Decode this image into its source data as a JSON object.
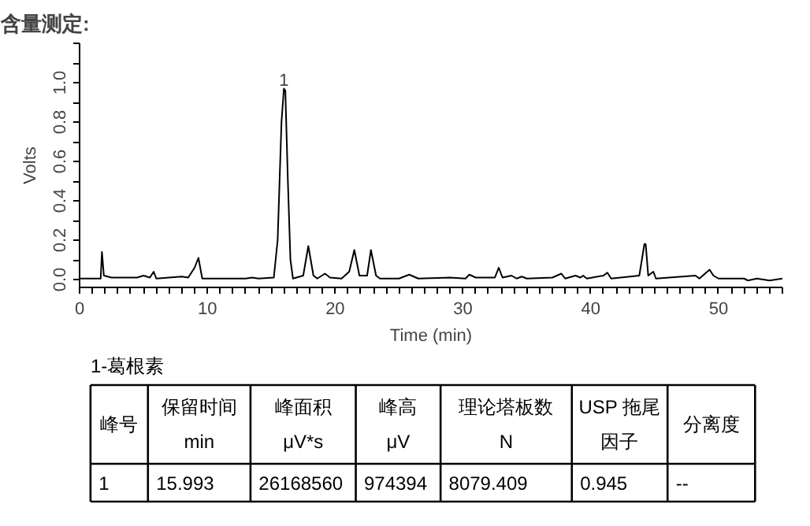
{
  "chart_data": {
    "type": "line",
    "title": "含量测定:",
    "xlabel": "Time (min)",
    "ylabel": "Volts",
    "xlim": [
      0,
      55
    ],
    "ylim": [
      -0.04,
      1.2
    ],
    "xticks": [
      0,
      {
        "value": 1,
        "label": null
      },
      {
        "value": 2,
        "label": null
      },
      {
        "value": 3,
        "label": null
      },
      {
        "value": 4,
        "label": null
      },
      {
        "value": 5,
        "label": null
      },
      {
        "value": 6,
        "label": null
      },
      {
        "value": 7,
        "label": null
      },
      {
        "value": 8,
        "label": null
      },
      {
        "value": 9,
        "label": null
      },
      10,
      {
        "value": 11,
        "label": null
      },
      {
        "value": 12,
        "label": null
      },
      {
        "value": 13,
        "label": null
      },
      {
        "value": 14,
        "label": null
      },
      {
        "value": 15,
        "label": null
      },
      {
        "value": 16,
        "label": null
      },
      {
        "value": 17,
        "label": null
      },
      {
        "value": 18,
        "label": null
      },
      {
        "value": 19,
        "label": null
      },
      20,
      {
        "value": 21,
        "label": null
      },
      {
        "value": 22,
        "label": null
      },
      {
        "value": 23,
        "label": null
      },
      {
        "value": 24,
        "label": null
      },
      {
        "value": 25,
        "label": null
      },
      {
        "value": 26,
        "label": null
      },
      {
        "value": 27,
        "label": null
      },
      {
        "value": 28,
        "label": null
      },
      {
        "value": 29,
        "label": null
      },
      30,
      {
        "value": 31,
        "label": null
      },
      {
        "value": 32,
        "label": null
      },
      {
        "value": 33,
        "label": null
      },
      {
        "value": 34,
        "label": null
      },
      {
        "value": 35,
        "label": null
      },
      {
        "value": 36,
        "label": null
      },
      {
        "value": 37,
        "label": null
      },
      {
        "value": 38,
        "label": null
      },
      {
        "value": 39,
        "label": null
      },
      40,
      {
        "value": 41,
        "label": null
      },
      {
        "value": 42,
        "label": null
      },
      {
        "value": 43,
        "label": null
      },
      {
        "value": 44,
        "label": null
      },
      {
        "value": 45,
        "label": null
      },
      {
        "value": 46,
        "label": null
      },
      {
        "value": 47,
        "label": null
      },
      {
        "value": 48,
        "label": null
      },
      {
        "value": 49,
        "label": null
      },
      50,
      {
        "value": 51,
        "label": null
      },
      {
        "value": 52,
        "label": null
      },
      {
        "value": 53,
        "label": null
      },
      {
        "value": 54,
        "label": null
      },
      {
        "value": 55,
        "label": null
      }
    ],
    "yticks": [
      {
        "value": 0,
        "label": "0.0"
      },
      {
        "value": 0.1,
        "label": null
      },
      {
        "value": 0.2,
        "label": "0.2"
      },
      {
        "value": 0.3,
        "label": null
      },
      {
        "value": 0.4,
        "label": "0.4"
      },
      {
        "value": 0.5,
        "label": null
      },
      {
        "value": 0.6,
        "label": "0.6"
      },
      {
        "value": 0.7,
        "label": null
      },
      {
        "value": 0.8,
        "label": "0.8"
      },
      {
        "value": 0.9,
        "label": null
      },
      {
        "value": 1.0,
        "label": "1.0"
      },
      {
        "value": 1.1,
        "label": null
      },
      {
        "value": 1.2,
        "label": null
      }
    ],
    "grid": false,
    "marker": "none",
    "line_style": "solid",
    "series": [
      {
        "color": "#000000",
        "x": [
          0,
          1.65,
          1.75,
          1.9,
          2.5,
          4.5,
          5,
          5.5,
          5.8,
          6,
          7,
          8,
          8.5,
          9,
          9.3,
          9.6,
          13,
          13.5,
          14,
          15.2,
          15.5,
          15.8,
          15.99,
          16.1,
          16.3,
          16.5,
          16.7,
          17.5,
          17.9,
          18.3,
          18.6,
          19.2,
          19.6,
          20.5,
          21.1,
          21.5,
          21.9,
          22.5,
          22.8,
          23.2,
          23.5,
          25,
          25.8,
          26.5,
          29,
          30.2,
          30.5,
          31,
          32.5,
          32.8,
          33.1,
          33.8,
          34.2,
          34.6,
          35,
          37,
          37.7,
          38,
          38.8,
          39.2,
          39.4,
          39.7,
          41,
          41.3,
          41.6,
          43.8,
          44.2,
          44.3,
          44.5,
          44.9,
          45.1,
          48.2,
          48.5,
          49.3,
          49.6,
          50,
          52,
          52.3,
          53,
          54,
          55
        ],
        "values": [
          0.005,
          0.005,
          0.14,
          0.02,
          0.01,
          0.01,
          0.02,
          0.01,
          0.04,
          0.005,
          0.01,
          0.015,
          0.01,
          0.06,
          0.11,
          0.005,
          0.005,
          0.01,
          0.005,
          0.01,
          0.2,
          0.8,
          0.97,
          0.96,
          0.5,
          0.1,
          0.005,
          0.02,
          0.17,
          0.02,
          0.005,
          0.03,
          0.01,
          0.005,
          0.04,
          0.15,
          0.02,
          0.02,
          0.15,
          0.02,
          0.005,
          0.005,
          0.025,
          0.005,
          0.01,
          0.005,
          0.025,
          0.01,
          0.01,
          0.06,
          0.01,
          0.02,
          0.005,
          0.015,
          0.005,
          0.01,
          0.03,
          0.005,
          0.02,
          0.01,
          0.02,
          0.005,
          0.02,
          0.035,
          0.005,
          0.02,
          0.18,
          0.18,
          0.02,
          0.04,
          0.005,
          0.02,
          0.005,
          0.05,
          0.02,
          0.005,
          0.005,
          -0.005,
          0.005,
          -0.005,
          0.005
        ]
      }
    ],
    "annotations": [
      {
        "text": "1",
        "x": 15.99,
        "y": 0.97
      },
      "1-葛根素",
      "峰号",
      "保留时间\nmin",
      "峰面积\nμV*s",
      "峰高\nμV",
      "理论塔板数\nN",
      "USP 拖尾因子",
      "分离度",
      "1",
      "15.993",
      "26168560",
      "974394",
      "8079.409",
      "0.945",
      "--"
    ]
  }
}
